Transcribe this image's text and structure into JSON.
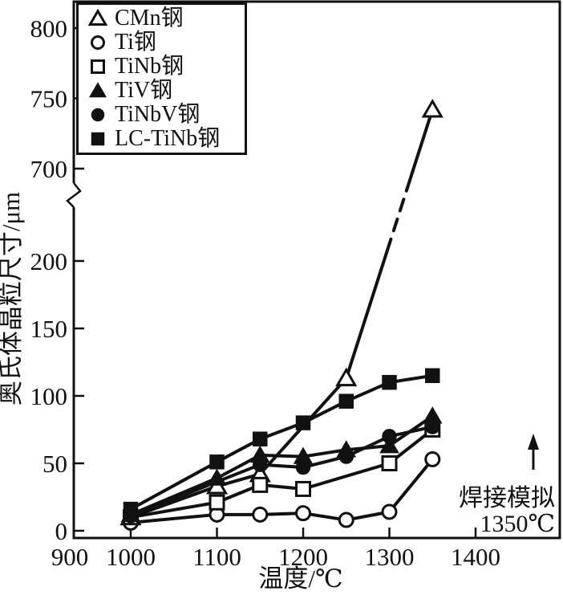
{
  "figure": {
    "annotation": {
      "line1": "焊接模拟",
      "line2": "1350℃"
    },
    "colors": {
      "ink": "#111111",
      "background": "#ffffff"
    }
  },
  "chart_data": {
    "type": "line",
    "title": "",
    "xlabel": "温度/℃",
    "ylabel": "奥氏体晶粒尺寸/μm",
    "x_ticks": [
      900,
      1000,
      1100,
      1200,
      1300,
      1400
    ],
    "y_ticks_lower": [
      0,
      50,
      100,
      150,
      200
    ],
    "y_ticks_upper": [
      700,
      750,
      800
    ],
    "y_axis_break": true,
    "xlim": [
      900,
      1490
    ],
    "ylim_lower": [
      0,
      240
    ],
    "ylim_upper": [
      690,
      820
    ],
    "grid": false,
    "legend_position": "top-left",
    "series": [
      {
        "name": "CMn钢",
        "marker": "triangle-open",
        "points": [
          [
            1000,
            10
          ],
          [
            1100,
            33
          ],
          [
            1150,
            42
          ],
          [
            1250,
            113
          ],
          [
            1350,
            742
          ]
        ],
        "crosses_axis_break": true
      },
      {
        "name": "Ti钢",
        "marker": "circle-open",
        "points": [
          [
            1000,
            6
          ],
          [
            1100,
            12
          ],
          [
            1150,
            12
          ],
          [
            1200,
            13
          ],
          [
            1250,
            8
          ],
          [
            1300,
            14
          ],
          [
            1350,
            53
          ]
        ]
      },
      {
        "name": "TiNb钢",
        "marker": "square-open",
        "points": [
          [
            1000,
            10
          ],
          [
            1100,
            21
          ],
          [
            1150,
            34
          ],
          [
            1200,
            31
          ],
          [
            1300,
            50
          ],
          [
            1350,
            75
          ]
        ]
      },
      {
        "name": "TiV钢",
        "marker": "triangle-filled",
        "points": [
          [
            1000,
            12
          ],
          [
            1100,
            39
          ],
          [
            1150,
            56
          ],
          [
            1200,
            55
          ],
          [
            1250,
            60
          ],
          [
            1300,
            63
          ],
          [
            1350,
            85
          ]
        ]
      },
      {
        "name": "TiNbV钢",
        "marker": "circle-filled",
        "points": [
          [
            1000,
            11
          ],
          [
            1150,
            49
          ],
          [
            1200,
            47
          ],
          [
            1250,
            55
          ],
          [
            1300,
            70
          ],
          [
            1350,
            77
          ]
        ]
      },
      {
        "name": "LC-TiNb钢",
        "marker": "square-filled",
        "points": [
          [
            1000,
            16
          ],
          [
            1100,
            51
          ],
          [
            1150,
            68
          ],
          [
            1200,
            80
          ],
          [
            1250,
            96
          ],
          [
            1300,
            110
          ],
          [
            1350,
            115
          ]
        ]
      }
    ]
  }
}
